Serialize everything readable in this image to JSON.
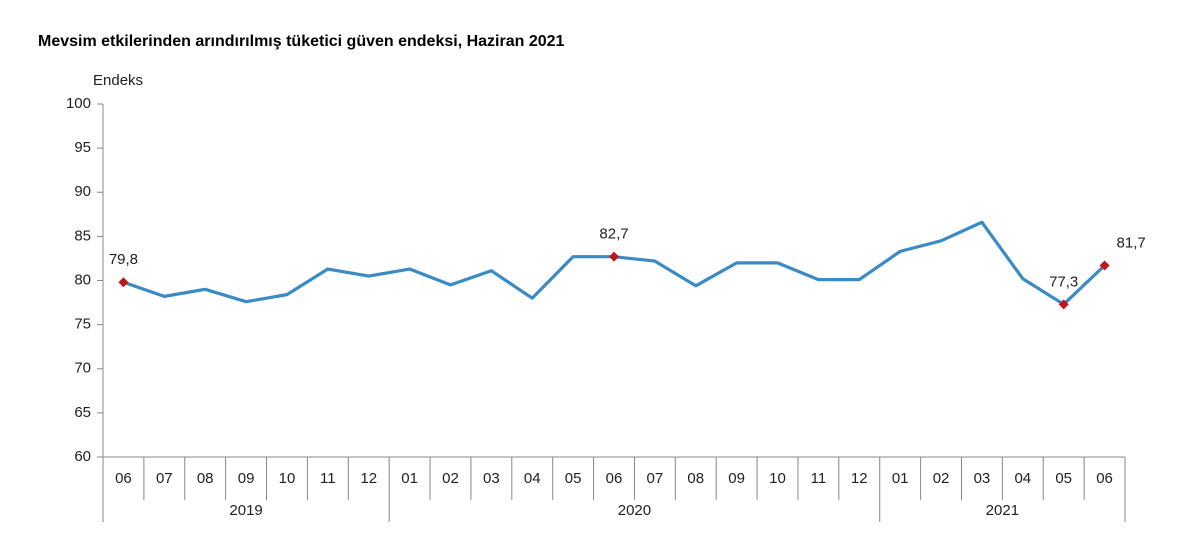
{
  "chart_data": {
    "type": "line",
    "title": "Mevsim etkilerinden arındırılmış tüketici güven endeksi, Haziran 2021",
    "y_label": "Endeks",
    "categories": [
      "06",
      "07",
      "08",
      "09",
      "10",
      "11",
      "12",
      "01",
      "02",
      "03",
      "04",
      "05",
      "06",
      "07",
      "08",
      "09",
      "10",
      "11",
      "12",
      "01",
      "02",
      "03",
      "04",
      "05",
      "06"
    ],
    "x_groups": [
      {
        "label": "2019",
        "count": 7
      },
      {
        "label": "2020",
        "count": 12
      },
      {
        "label": "2021",
        "count": 6
      }
    ],
    "series": [
      {
        "name": "Endeks",
        "color": "#3a8ac6",
        "marker_color": "#c0161d",
        "values": [
          79.8,
          78.2,
          79.0,
          77.6,
          78.4,
          81.3,
          80.5,
          81.3,
          79.5,
          81.1,
          78.0,
          82.7,
          82.7,
          82.2,
          79.4,
          82.0,
          82.0,
          80.1,
          80.1,
          83.3,
          84.5,
          86.6,
          80.2,
          77.3,
          81.7
        ],
        "value_labels": [
          "79,8",
          null,
          null,
          null,
          null,
          null,
          null,
          null,
          null,
          null,
          null,
          null,
          "82,7",
          null,
          null,
          null,
          null,
          null,
          null,
          null,
          null,
          null,
          null,
          "77,3",
          "81,7"
        ]
      }
    ],
    "ylim": [
      60,
      100
    ],
    "yticks": [
      60,
      65,
      70,
      75,
      80,
      85,
      90,
      95,
      100
    ],
    "grid": false
  }
}
